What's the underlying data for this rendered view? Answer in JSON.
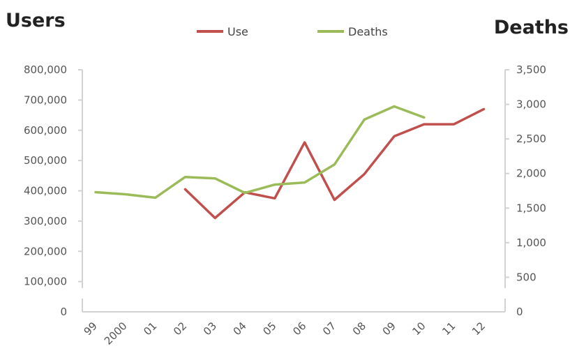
{
  "chart_data": {
    "type": "line",
    "left_axis_title": "Users",
    "right_axis_title": "Deaths",
    "categories": [
      "99",
      "2000",
      "01",
      "02",
      "03",
      "04",
      "05",
      "06",
      "07",
      "08",
      "09",
      "10",
      "11",
      "12"
    ],
    "left_axis": {
      "range": [
        0,
        800000
      ],
      "ticks": [
        0,
        100000,
        200000,
        300000,
        400000,
        500000,
        600000,
        700000,
        800000
      ],
      "tick_labels": [
        "0",
        "100,000",
        "200,000",
        "300,000",
        "400,000",
        "500,000",
        "600,000",
        "700,000",
        "800,000"
      ]
    },
    "right_axis": {
      "range": [
        0,
        3500
      ],
      "ticks": [
        0,
        500,
        1000,
        1500,
        2000,
        2500,
        3000,
        3500
      ],
      "tick_labels": [
        "0",
        "500",
        "1,000",
        "1,500",
        "2,000",
        "2,500",
        "3,000",
        "3,500"
      ]
    },
    "series": [
      {
        "name": "Use",
        "axis": "left",
        "color": "#c0504d",
        "values": [
          null,
          null,
          null,
          405000,
          310000,
          395000,
          375000,
          560000,
          370000,
          455000,
          580000,
          620000,
          620000,
          670000
        ]
      },
      {
        "name": "Deaths",
        "axis": "right",
        "color": "#9bbb59",
        "values": [
          1730,
          1700,
          1650,
          1950,
          1930,
          1720,
          1840,
          1870,
          2130,
          2780,
          2970,
          2810,
          null,
          null
        ]
      }
    ],
    "legend_position": "top-center",
    "grid": false
  }
}
